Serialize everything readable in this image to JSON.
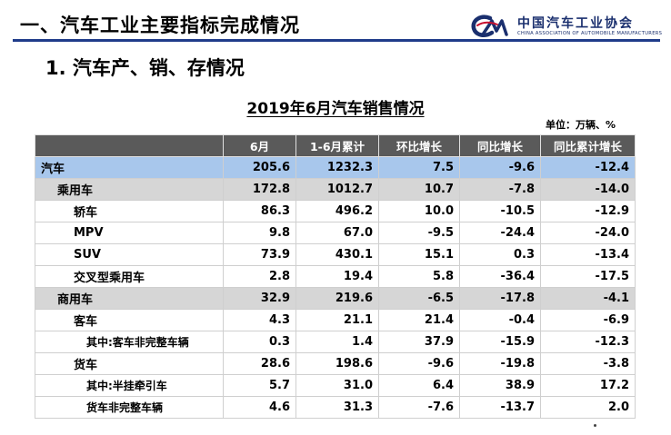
{
  "header": {
    "title": "一、汽车工业主要指标完成情况",
    "org_name": "中国汽车工业协会",
    "org_name_en": "CHINA ASSOCIATION OF AUTOMOBILE MANUFACTURERS",
    "logo_letters": "CM",
    "accent_color": "#1f3c8a"
  },
  "section_title": "1. 汽车产、销、存情况",
  "table": {
    "title": "2019年6月汽车销售情况",
    "unit": "单位：万辆、%",
    "columns": [
      "",
      "6月",
      "1-6月累计",
      "环比增长",
      "同比增长",
      "同比累计增长"
    ],
    "rows": [
      {
        "name": "汽车",
        "values": [
          "205.6",
          "1232.3",
          "7.5",
          "-9.6",
          "-12.4"
        ]
      },
      {
        "name": "乘用车",
        "values": [
          "172.8",
          "1012.7",
          "10.7",
          "-7.8",
          "-14.0"
        ]
      },
      {
        "name": "轿车",
        "values": [
          "86.3",
          "496.2",
          "10.0",
          "-10.5",
          "-12.9"
        ]
      },
      {
        "name": "MPV",
        "values": [
          "9.8",
          "67.0",
          "-9.5",
          "-24.4",
          "-24.0"
        ]
      },
      {
        "name": "SUV",
        "values": [
          "73.9",
          "430.1",
          "15.1",
          "0.3",
          "-13.4"
        ]
      },
      {
        "name": "交叉型乘用车",
        "values": [
          "2.8",
          "19.4",
          "5.8",
          "-36.4",
          "-17.5"
        ]
      },
      {
        "name": "商用车",
        "values": [
          "32.9",
          "219.6",
          "-6.5",
          "-17.8",
          "-4.1"
        ]
      },
      {
        "name": "客车",
        "values": [
          "4.3",
          "21.1",
          "21.4",
          "-0.4",
          "-6.9"
        ]
      },
      {
        "name": "其中:客车非完整车辆",
        "values": [
          "0.3",
          "1.4",
          "37.9",
          "-15.9",
          "-12.3"
        ]
      },
      {
        "name": "货车",
        "values": [
          "28.6",
          "198.6",
          "-9.6",
          "-19.8",
          "-3.8"
        ]
      },
      {
        "name": "其中:半挂牵引车",
        "values": [
          "5.7",
          "31.0",
          "6.4",
          "38.9",
          "17.2"
        ]
      },
      {
        "name": "货车非完整车辆",
        "values": [
          "4.6",
          "31.3",
          "-7.6",
          "-13.7",
          "2.0"
        ]
      }
    ]
  },
  "colors": {
    "header_row": "#5a5a5a",
    "total_row": "#a8c7ec",
    "subtotal_row": "#d6d6d6"
  }
}
